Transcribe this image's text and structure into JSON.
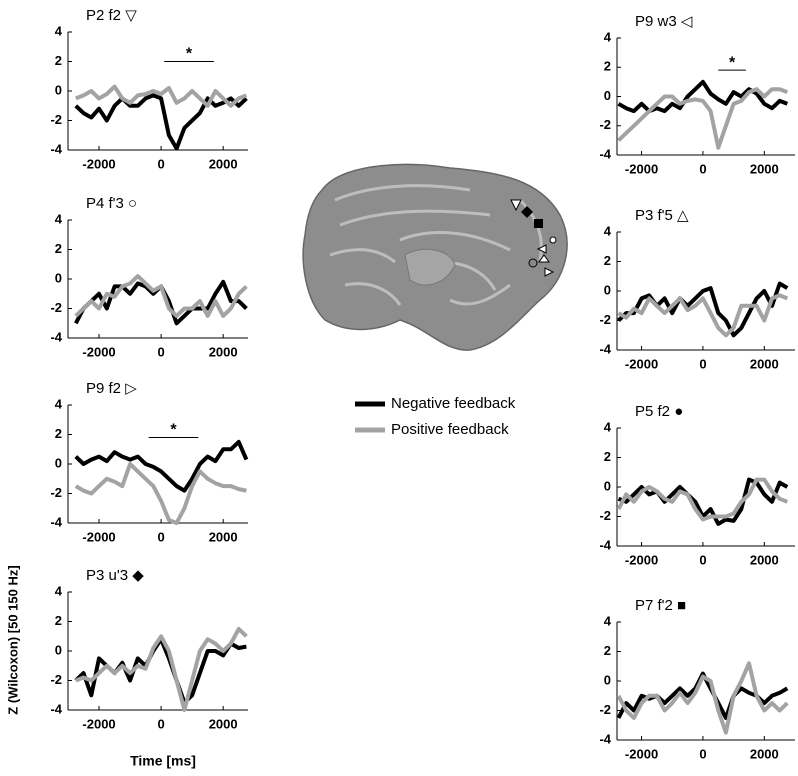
{
  "y_label": "Z (Wilcoxon) [50 150 Hz]",
  "x_label": "Time [ms]",
  "legend": [
    {
      "name": "Negative feedback",
      "color": "#000000"
    },
    {
      "name": "Positive feedback",
      "color": "#a3a3a3"
    }
  ],
  "chart_data": [
    {
      "type": "line",
      "title": "P2 f2 ▽",
      "xlim": [
        -3000,
        2800
      ],
      "ylim": [
        -4,
        4
      ],
      "xticks": [
        -2000,
        0,
        2000
      ],
      "yticks": [
        -4,
        -2,
        0,
        2,
        4
      ],
      "x": [
        -2750,
        -2500,
        -2250,
        -2000,
        -1750,
        -1500,
        -1250,
        -1000,
        -750,
        -500,
        -250,
        0,
        250,
        500,
        750,
        1000,
        1250,
        1500,
        1750,
        2000,
        2250,
        2500,
        2750
      ],
      "series": [
        {
          "values": [
            -1,
            -1.5,
            -1.8,
            -1.2,
            -2,
            -1,
            -0.5,
            -1,
            -1,
            -0.5,
            -0.3,
            -0.5,
            -3,
            -3.9,
            -2.5,
            -2,
            -1.5,
            -0.5,
            -1,
            -0.8,
            -0.5,
            -1,
            -0.5
          ]
        },
        {
          "values": [
            -0.5,
            -0.3,
            0,
            -0.5,
            -0.2,
            0.3,
            -0.5,
            -0.8,
            -0.3,
            -0.2,
            0,
            -0.2,
            0.2,
            -0.8,
            -0.5,
            0,
            -0.5,
            -1,
            0,
            -0.5,
            -1,
            -0.5,
            -0.3
          ]
        }
      ],
      "sig": {
        "x": [
          100,
          1700
        ],
        "y": 2,
        "label": "*"
      }
    },
    {
      "type": "line",
      "title": "P4 f'3 ○",
      "xlim": [
        -3000,
        2800
      ],
      "ylim": [
        -4,
        4
      ],
      "xticks": [
        -2000,
        0,
        2000
      ],
      "yticks": [
        -4,
        -2,
        0,
        2,
        4
      ],
      "x": [
        -2750,
        -2500,
        -2250,
        -2000,
        -1750,
        -1500,
        -1250,
        -1000,
        -750,
        -500,
        -250,
        0,
        250,
        500,
        750,
        1000,
        1250,
        1500,
        1750,
        2000,
        2250,
        2500,
        2750
      ],
      "series": [
        {
          "values": [
            -3,
            -2,
            -1.5,
            -1,
            -2,
            -0.5,
            -0.5,
            -1,
            -0.3,
            -0.5,
            -1,
            -0.5,
            -1.5,
            -3,
            -2.5,
            -2,
            -2,
            -2,
            -1,
            -0.2,
            -1.5,
            -1.5,
            -2
          ]
        },
        {
          "values": [
            -2.5,
            -2,
            -1.5,
            -2,
            -1,
            -1.2,
            -0.5,
            -0.3,
            0.2,
            -0.3,
            -0.8,
            -0.5,
            -2,
            -2.5,
            -2,
            -2,
            -1.5,
            -2.5,
            -1.5,
            -2.5,
            -2,
            -1,
            -0.5
          ]
        }
      ]
    },
    {
      "type": "line",
      "title": "P9 f2 ▷",
      "xlim": [
        -3000,
        2800
      ],
      "ylim": [
        -4,
        4
      ],
      "xticks": [
        -2000,
        0,
        2000
      ],
      "yticks": [
        -4,
        -2,
        0,
        2,
        4
      ],
      "x": [
        -2750,
        -2500,
        -2250,
        -2000,
        -1750,
        -1500,
        -1250,
        -1000,
        -750,
        -500,
        -250,
        0,
        250,
        500,
        750,
        1000,
        1250,
        1500,
        1750,
        2000,
        2250,
        2500,
        2750
      ],
      "series": [
        {
          "values": [
            0.5,
            0,
            0.3,
            0.5,
            0.2,
            0.8,
            0.5,
            0.3,
            0.5,
            0,
            -0.2,
            -0.5,
            -1,
            -1.5,
            -1.8,
            -1,
            0,
            0.5,
            0.2,
            1,
            1,
            1.5,
            0.3
          ]
        },
        {
          "values": [
            -1.5,
            -1.8,
            -2,
            -1.5,
            -1,
            -1.2,
            -1.5,
            0,
            -0.5,
            -1,
            -1.5,
            -2.5,
            -3.8,
            -4,
            -3,
            -1.5,
            -0.5,
            -1,
            -1.3,
            -1.5,
            -1.5,
            -1.7,
            -1.8
          ]
        }
      ],
      "sig": {
        "x": [
          -400,
          1200
        ],
        "y": 1.8,
        "label": "*"
      }
    },
    {
      "type": "line",
      "title": "P3 u'3 ◆",
      "xlim": [
        -3000,
        2800
      ],
      "ylim": [
        -4,
        4
      ],
      "xticks": [
        -2000,
        0,
        2000
      ],
      "yticks": [
        -4,
        -2,
        0,
        2,
        4
      ],
      "x": [
        -2750,
        -2500,
        -2250,
        -2000,
        -1750,
        -1500,
        -1250,
        -1000,
        -750,
        -500,
        -250,
        0,
        250,
        500,
        750,
        1000,
        1250,
        1500,
        1750,
        2000,
        2250,
        2500,
        2750
      ],
      "series": [
        {
          "values": [
            -2,
            -1.5,
            -3,
            -0.5,
            -1,
            -1.5,
            -0.8,
            -2,
            -0.5,
            -1,
            0,
            0.8,
            -0.5,
            -2,
            -3.5,
            -3,
            -1.5,
            0,
            0,
            -0.3,
            0.5,
            0.2,
            0.3
          ]
        },
        {
          "values": [
            -2,
            -1.8,
            -2,
            -1.5,
            -1,
            -1.5,
            -1,
            -1.5,
            -1,
            -1.2,
            0.2,
            1,
            0,
            -2,
            -4,
            -2,
            0,
            0.8,
            0.5,
            0,
            0.5,
            1.5,
            1
          ]
        }
      ]
    },
    {
      "type": "line",
      "title": "P9 w3 ◁",
      "xlim": [
        -2800,
        3000
      ],
      "ylim": [
        -4,
        4
      ],
      "xticks": [
        -2000,
        0,
        2000
      ],
      "yticks": [
        -4,
        -2,
        0,
        2,
        4
      ],
      "x": [
        -2750,
        -2500,
        -2250,
        -2000,
        -1750,
        -1500,
        -1250,
        -1000,
        -750,
        -500,
        -250,
        0,
        250,
        500,
        750,
        1000,
        1250,
        1500,
        1750,
        2000,
        2250,
        2500,
        2750
      ],
      "series": [
        {
          "values": [
            -0.5,
            -0.8,
            -1,
            -0.5,
            -1,
            -0.8,
            -1,
            -0.5,
            -0.8,
            0,
            0.5,
            1,
            0.2,
            -0.2,
            -0.5,
            0.3,
            0,
            0.5,
            0.2,
            -0.5,
            -0.8,
            -0.3,
            -0.5
          ]
        },
        {
          "values": [
            -3,
            -2.5,
            -2,
            -1.5,
            -1,
            -0.5,
            0,
            0,
            -0.5,
            -0.3,
            -0.2,
            -0.3,
            -1,
            -3.5,
            -2,
            -0.5,
            -0.3,
            0.3,
            0.5,
            0,
            0.5,
            0.5,
            0.3
          ]
        }
      ],
      "sig": {
        "x": [
          500,
          1400
        ],
        "y": 1.8,
        "label": "*"
      }
    },
    {
      "type": "line",
      "title": "P3 f'5 △",
      "xlim": [
        -2800,
        3000
      ],
      "ylim": [
        -4,
        4
      ],
      "xticks": [
        -2000,
        0,
        2000
      ],
      "yticks": [
        -4,
        -2,
        0,
        2,
        4
      ],
      "x": [
        -2750,
        -2500,
        -2250,
        -2000,
        -1750,
        -1500,
        -1250,
        -1000,
        -750,
        -500,
        -250,
        0,
        250,
        500,
        750,
        1000,
        1250,
        1500,
        1750,
        2000,
        2250,
        2500,
        2750
      ],
      "series": [
        {
          "values": [
            -2,
            -1.5,
            -1.5,
            -0.5,
            -0.3,
            -1,
            -0.5,
            -1.5,
            -0.5,
            -1,
            -0.5,
            0,
            0.2,
            -1.5,
            -2,
            -3,
            -2.5,
            -1.5,
            -0.5,
            0,
            -1,
            0.5,
            0.2
          ]
        },
        {
          "values": [
            -1.5,
            -1.8,
            -1.2,
            -1.5,
            -0.5,
            -1,
            -1.5,
            -1,
            -0.5,
            -1.3,
            -1,
            -0.5,
            -1.5,
            -2.5,
            -3,
            -2.5,
            -1,
            -1,
            -1,
            -2,
            -0.5,
            -0.3,
            -0.5
          ]
        }
      ]
    },
    {
      "type": "line",
      "title": "P5 f2 ●",
      "xlim": [
        -2800,
        3000
      ],
      "ylim": [
        -4,
        4
      ],
      "xticks": [
        -2000,
        0,
        2000
      ],
      "yticks": [
        -4,
        -2,
        0,
        2,
        4
      ],
      "x": [
        -2750,
        -2500,
        -2250,
        -2000,
        -1750,
        -1500,
        -1250,
        -1000,
        -750,
        -500,
        -250,
        0,
        250,
        500,
        750,
        1000,
        1250,
        1500,
        1750,
        2000,
        2250,
        2500,
        2750
      ],
      "series": [
        {
          "values": [
            -0.8,
            -1,
            -0.5,
            0,
            -0.5,
            -0.3,
            -1,
            -0.5,
            0,
            -0.5,
            -1,
            -2,
            -1.5,
            -2.5,
            -2.2,
            -2.3,
            -1.5,
            0.5,
            0.3,
            -0.5,
            -1,
            0.3,
            0
          ]
        },
        {
          "values": [
            -1.5,
            -0.5,
            -1,
            -0.3,
            0,
            -0.3,
            -0.8,
            -1,
            -0.3,
            -0.5,
            -1.5,
            -2.2,
            -2,
            -2,
            -2,
            -1.8,
            -1,
            -0.5,
            0.5,
            0.5,
            -0.3,
            -0.8,
            -1
          ]
        }
      ]
    },
    {
      "type": "line",
      "title": "P7 f'2 ■",
      "xlim": [
        -2800,
        3000
      ],
      "ylim": [
        -4,
        4
      ],
      "xticks": [
        -2000,
        0,
        2000
      ],
      "yticks": [
        -4,
        -2,
        0,
        2,
        4
      ],
      "x": [
        -2750,
        -2500,
        -2250,
        -2000,
        -1750,
        -1500,
        -1250,
        -1000,
        -750,
        -500,
        -250,
        0,
        250,
        500,
        750,
        1000,
        1250,
        1500,
        1750,
        2000,
        2250,
        2500,
        2750
      ],
      "series": [
        {
          "values": [
            -2.5,
            -1.5,
            -2,
            -1,
            -1.2,
            -1,
            -1.5,
            -1,
            -0.5,
            -1,
            -0.5,
            0.5,
            -0.5,
            -1.5,
            -2.5,
            -1,
            -0.5,
            -0.8,
            -1,
            -1.5,
            -1,
            -0.8,
            -0.5
          ]
        },
        {
          "values": [
            -1,
            -2,
            -2.5,
            -1.5,
            -1,
            -1,
            -2,
            -1.5,
            -0.8,
            -1.5,
            -0.8,
            0.3,
            0,
            -2,
            -3.5,
            -1,
            0,
            1.2,
            -1,
            -2,
            -1.5,
            -2,
            -1.5
          ]
        }
      ]
    }
  ]
}
